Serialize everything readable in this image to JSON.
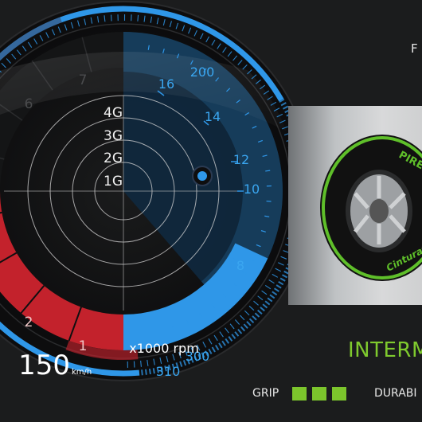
{
  "gauge": {
    "g_labels": [
      "4G",
      "3G",
      "2G",
      "1G"
    ],
    "rpm_ticks": [
      "16",
      "14",
      "12",
      "10",
      "8"
    ],
    "speed_ticks": [
      "200",
      "300",
      "310"
    ],
    "gear_labels": [
      "7",
      "6",
      "2",
      "1"
    ],
    "rpm_unit": "x1000 rpm",
    "speed_value": "150",
    "speed_unit": "km/h",
    "rpm_level_fraction": 0.62,
    "accent_color": "#2f97e8",
    "warning_color": "#c3222c"
  },
  "tyre": {
    "brand_text": "PIRELLI",
    "model_text": "Cinturato",
    "type_label": "INTERM",
    "stripe_color": "#5fbf2a"
  },
  "stats": {
    "grip_label": "GRIP",
    "grip_level": 3,
    "durability_label": "DURABI"
  },
  "header": {
    "corner_letter": "F"
  }
}
